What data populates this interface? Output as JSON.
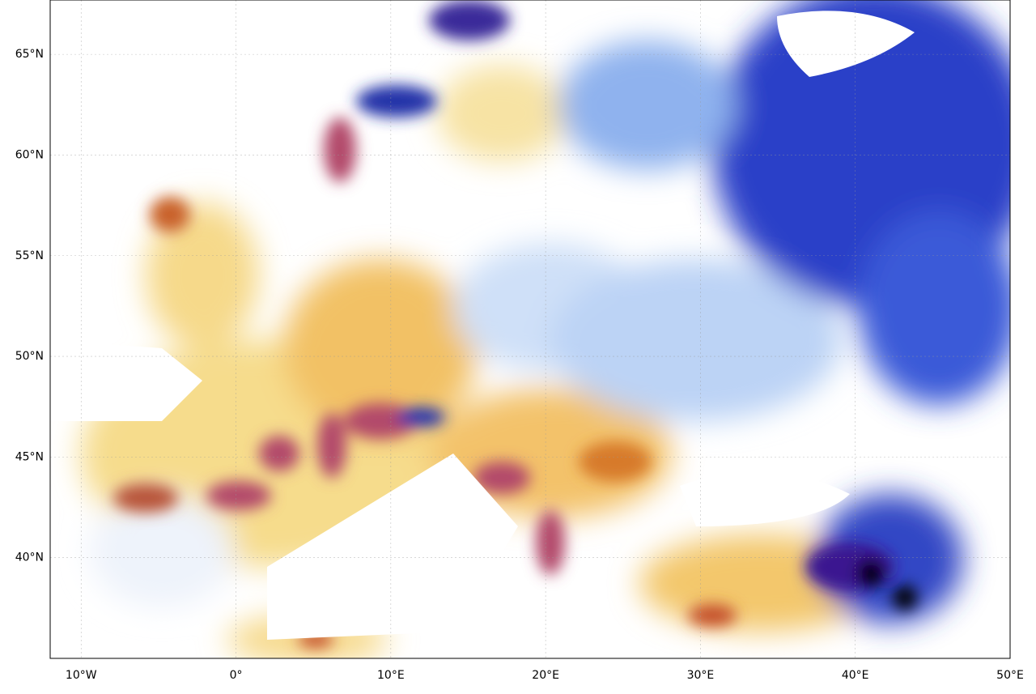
{
  "map": {
    "xlim": [
      -12,
      50
    ],
    "ylim": [
      35,
      67.7
    ],
    "xticks": [
      {
        "value": -10,
        "label": "10°W"
      },
      {
        "value": 0,
        "label": "0°"
      },
      {
        "value": 10,
        "label": "10°E"
      },
      {
        "value": 20,
        "label": "20°E"
      },
      {
        "value": 30,
        "label": "30°E"
      },
      {
        "value": 40,
        "label": "40°E"
      },
      {
        "value": 50,
        "label": "50°E"
      }
    ],
    "yticks": [
      {
        "value": 40,
        "label": "40°N"
      },
      {
        "value": 45,
        "label": "45°N"
      },
      {
        "value": 50,
        "label": "50°N"
      },
      {
        "value": 55,
        "label": "55°N"
      },
      {
        "value": 60,
        "label": "60°N"
      },
      {
        "value": 65,
        "label": "65°N"
      }
    ],
    "grid": true
  }
}
